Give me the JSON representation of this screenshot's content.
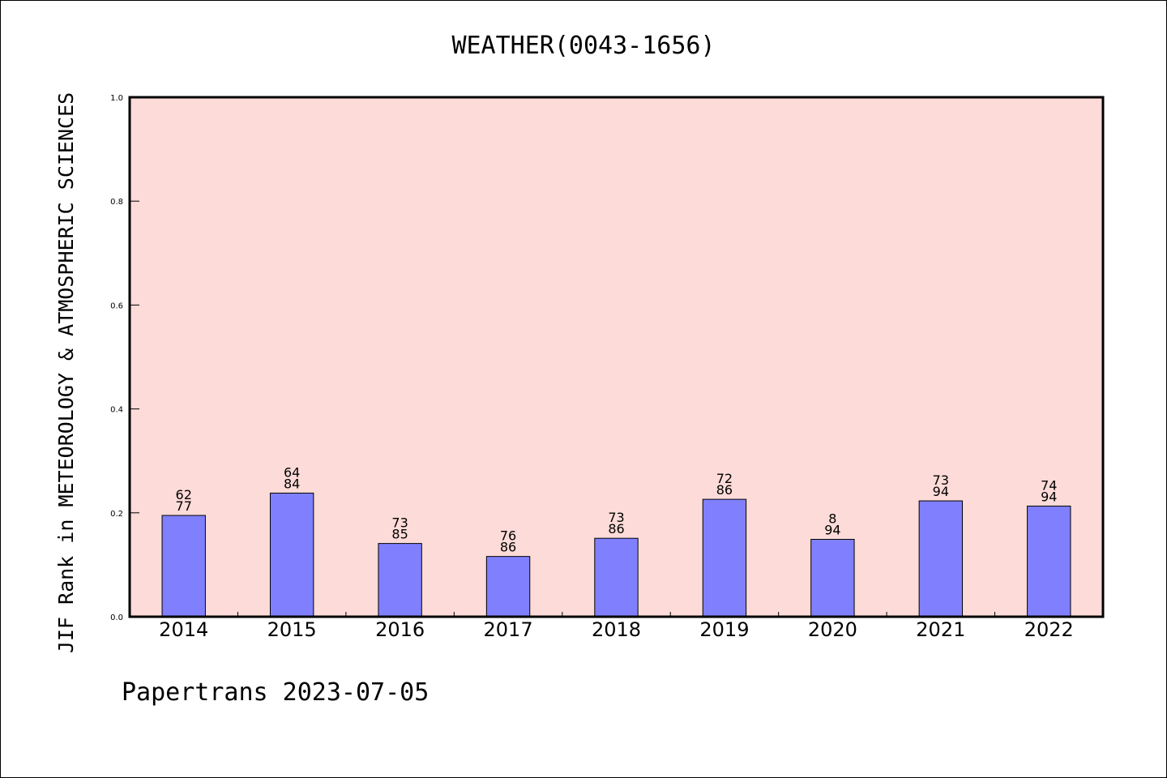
{
  "chart_data": {
    "type": "bar",
    "title": "WEATHER(0043-1656)",
    "ylabel": "JIF Rank in METEOROLOGY & ATMOSPHERIC SCIENCES",
    "xlabel": "",
    "ylim": [
      0,
      1.0
    ],
    "yticks": [
      "0.0",
      "0.2",
      "0.4",
      "0.6",
      "0.8",
      "1.0"
    ],
    "categories": [
      "2014",
      "2015",
      "2016",
      "2017",
      "2018",
      "2019",
      "2020",
      "2021",
      "2022"
    ],
    "values": [
      0.195,
      0.238,
      0.141,
      0.116,
      0.151,
      0.226,
      0.149,
      0.223,
      0.213
    ],
    "labels_top": [
      "62",
      "64",
      "73",
      "76",
      "73",
      "72",
      "8",
      "73",
      "74"
    ],
    "labels_bottom": [
      "77",
      "84",
      "85",
      "86",
      "86",
      "86",
      "94",
      "94",
      "94"
    ],
    "grid": false,
    "colors": {
      "plot_background": "#fddbd8",
      "bar_fill": "#8080ff",
      "bar_edge": "#000000"
    }
  },
  "footer": "Papertrans 2023-07-05"
}
